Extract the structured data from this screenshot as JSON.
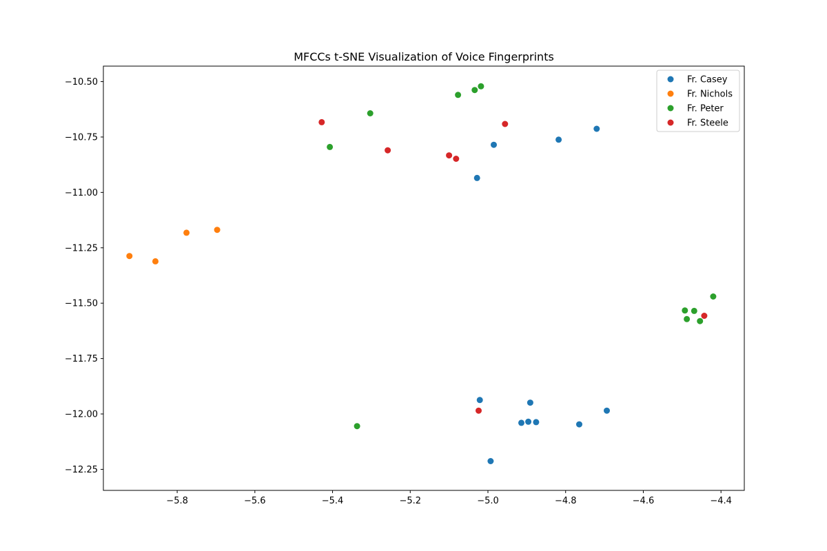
{
  "chart_data": {
    "type": "scatter",
    "title": "MFCCs t-SNE Visualization of Voice Fingerprints",
    "xlabel": "",
    "ylabel": "",
    "xlim": [
      -5.99,
      -4.34
    ],
    "ylim": [
      -12.345,
      -10.43
    ],
    "x_ticks": [
      -5.8,
      -5.6,
      -5.4,
      -5.2,
      -5.0,
      -4.8,
      -4.6,
      -4.4
    ],
    "x_tick_labels": [
      "−5.8",
      "−5.6",
      "−5.4",
      "−5.2",
      "−5.0",
      "−4.8",
      "−4.6",
      "−4.4"
    ],
    "y_ticks": [
      -10.5,
      -10.75,
      -11.0,
      -11.25,
      -11.5,
      -11.75,
      -12.0,
      -12.25
    ],
    "y_tick_labels": [
      "−10.50",
      "−10.75",
      "−11.00",
      "−11.25",
      "−11.50",
      "−11.75",
      "−12.00",
      "−12.25"
    ],
    "grid": false,
    "legend_position": "top-right",
    "series": [
      {
        "name": "Fr. Casey",
        "color": "#1f77b4",
        "points": [
          {
            "x": -5.028,
            "y": -10.935
          },
          {
            "x": -4.985,
            "y": -10.785
          },
          {
            "x": -4.818,
            "y": -10.762
          },
          {
            "x": -4.72,
            "y": -10.713
          },
          {
            "x": -5.021,
            "y": -11.937
          },
          {
            "x": -4.891,
            "y": -11.949
          },
          {
            "x": -4.694,
            "y": -11.985
          },
          {
            "x": -4.914,
            "y": -12.04
          },
          {
            "x": -4.896,
            "y": -12.035
          },
          {
            "x": -4.876,
            "y": -12.037
          },
          {
            "x": -4.765,
            "y": -12.047
          },
          {
            "x": -4.993,
            "y": -12.213
          }
        ]
      },
      {
        "name": "Fr. Nichols",
        "color": "#ff7f0e",
        "points": [
          {
            "x": -5.923,
            "y": -11.287
          },
          {
            "x": -5.856,
            "y": -11.311
          },
          {
            "x": -5.776,
            "y": -11.182
          },
          {
            "x": -5.697,
            "y": -11.169
          }
        ]
      },
      {
        "name": "Fr. Peter",
        "color": "#2ca02c",
        "points": [
          {
            "x": -5.018,
            "y": -10.521
          },
          {
            "x": -5.034,
            "y": -10.538
          },
          {
            "x": -5.077,
            "y": -10.56
          },
          {
            "x": -5.303,
            "y": -10.643
          },
          {
            "x": -5.407,
            "y": -10.795
          },
          {
            "x": -4.42,
            "y": -11.47
          },
          {
            "x": -4.493,
            "y": -11.533
          },
          {
            "x": -4.469,
            "y": -11.535
          },
          {
            "x": -4.488,
            "y": -11.572
          },
          {
            "x": -4.454,
            "y": -11.581
          },
          {
            "x": -5.337,
            "y": -12.055
          }
        ]
      },
      {
        "name": "Fr. Steele",
        "color": "#d62728",
        "points": [
          {
            "x": -5.428,
            "y": -10.683
          },
          {
            "x": -4.956,
            "y": -10.691
          },
          {
            "x": -5.258,
            "y": -10.81
          },
          {
            "x": -5.1,
            "y": -10.833
          },
          {
            "x": -5.082,
            "y": -10.848
          },
          {
            "x": -4.443,
            "y": -11.557
          },
          {
            "x": -5.024,
            "y": -11.985
          }
        ]
      }
    ]
  }
}
